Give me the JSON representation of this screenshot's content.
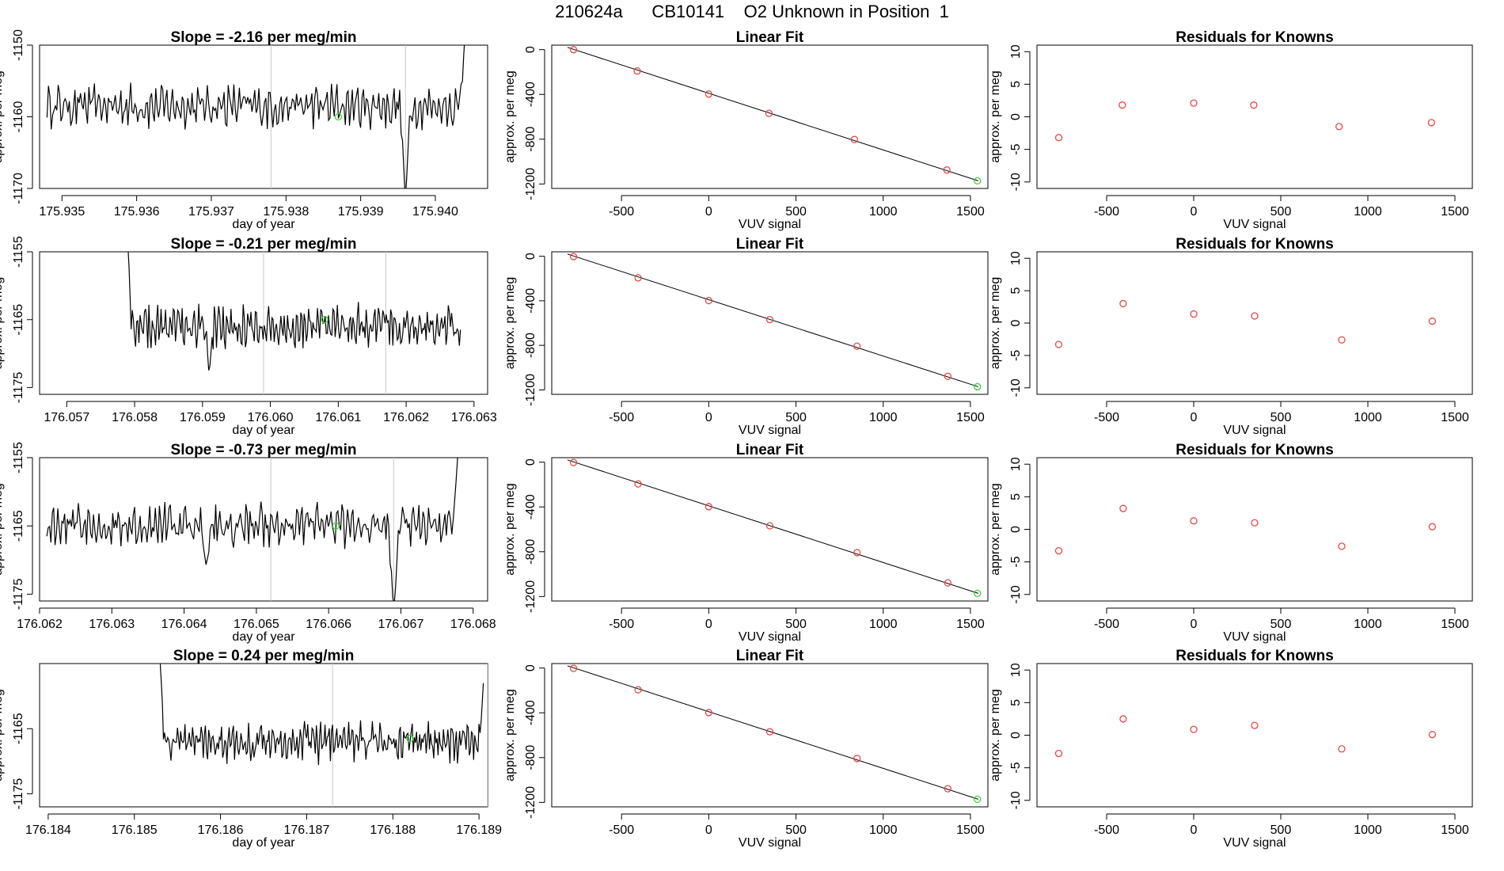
{
  "page": {
    "title": "210624a      CB10141    O2 Unknown in Position  1"
  },
  "colors": {
    "series": "#000000",
    "marker_known": "#dd4b4b",
    "marker_unknown": "#3ecf3e",
    "vline": "#c8c8c8",
    "axis": "#000000"
  },
  "chart_data": [
    {
      "type": "line",
      "row": 0,
      "panel": "time-series",
      "title": "Slope =  -2.16  per meg/min",
      "xlabel": "day of year",
      "ylabel": "approx. per meg",
      "xlim": [
        175.9347,
        175.9407
      ],
      "ylim": [
        -1170,
        -1150
      ],
      "x_ticks": [
        "175.935",
        "175.936",
        "175.937",
        "175.938",
        "175.939",
        "175.940"
      ],
      "y_ticks": [
        "-1150",
        "-1160",
        "-1170"
      ],
      "vlines": [
        175.9378,
        175.9396
      ],
      "series": {
        "x_start": 175.9348,
        "x_end": 175.9404,
        "base": -1158.5,
        "amp": 2.5,
        "events": [
          {
            "x": 175.9396,
            "y": -1172
          },
          {
            "x": 175.9404,
            "y": -1148
          }
        ]
      },
      "unknown_marker": {
        "x": 175.9387,
        "y": -1160
      }
    },
    {
      "type": "scatter",
      "row": 0,
      "panel": "linear-fit",
      "title": "Linear Fit",
      "xlabel": "VUV signal",
      "ylabel": "approx. per meg",
      "xlim": [
        -900,
        1600
      ],
      "ylim": [
        -1240,
        40
      ],
      "x_ticks": [
        "-500",
        "0",
        "500",
        "1000",
        "1500"
      ],
      "y_ticks": [
        "0",
        "-400",
        "-800",
        "-1200"
      ],
      "fit_line": {
        "x": [
          -810,
          1545
        ],
        "y": [
          20,
          -1172
        ]
      },
      "knowns": {
        "x": [
          -775,
          -410,
          0,
          345,
          835,
          1365
        ],
        "y": [
          -1,
          -191,
          -397,
          -569,
          -803,
          -1075
        ]
      },
      "unknown": {
        "x": 1540,
        "y": -1172
      }
    },
    {
      "type": "scatter",
      "row": 0,
      "panel": "residuals",
      "title": "Residuals for Knowns",
      "xlabel": "VUV signal",
      "ylabel": "approx. per meg",
      "xlim": [
        -900,
        1600
      ],
      "ylim": [
        -11,
        11
      ],
      "x_ticks": [
        "-500",
        "0",
        "500",
        "1000",
        "1500"
      ],
      "y_ticks": [
        "10",
        "5",
        "0",
        "-5",
        "-10"
      ],
      "x": [
        -775,
        -410,
        0,
        345,
        835,
        1365
      ],
      "y": [
        -3.2,
        1.8,
        2.1,
        1.8,
        -1.5,
        -0.9
      ]
    },
    {
      "type": "line",
      "row": 1,
      "panel": "time-series",
      "title": "Slope =  -0.21  per meg/min",
      "xlabel": "day of year",
      "ylabel": "approx. per meg",
      "xlim": [
        176.0566,
        176.0632
      ],
      "ylim": [
        -1176,
        -1155
      ],
      "x_ticks": [
        "176.057",
        "176.058",
        "176.059",
        "176.060",
        "176.061",
        "176.062",
        "176.063"
      ],
      "y_ticks": [
        "-1155",
        "-1165",
        "-1175"
      ],
      "vlines": [
        176.0599,
        176.0617
      ],
      "series": {
        "x_start": 176.0579,
        "x_end": 176.0628,
        "base": -1166,
        "amp": 2.6,
        "events": [
          {
            "x": 176.0579,
            "y": -1154
          },
          {
            "x": 176.0591,
            "y": -1173
          }
        ]
      },
      "unknown_marker": {
        "x": 176.0608,
        "y": -1165
      }
    },
    {
      "type": "scatter",
      "row": 1,
      "panel": "linear-fit",
      "title": "Linear Fit",
      "xlabel": "VUV signal",
      "ylabel": "approx. per meg",
      "xlim": [
        -900,
        1600
      ],
      "ylim": [
        -1240,
        40
      ],
      "x_ticks": [
        "-500",
        "0",
        "500",
        "1000",
        "1500"
      ],
      "y_ticks": [
        "0",
        "-400",
        "-800",
        "-1200"
      ],
      "fit_line": {
        "x": [
          -810,
          1545
        ],
        "y": [
          20,
          -1172
        ]
      },
      "knowns": {
        "x": [
          -775,
          -405,
          0,
          350,
          850,
          1370
        ],
        "y": [
          -3,
          -194,
          -398,
          -569,
          -808,
          -1078
        ]
      },
      "unknown": {
        "x": 1540,
        "y": -1172
      }
    },
    {
      "type": "scatter",
      "row": 1,
      "panel": "residuals",
      "title": "Residuals for Knowns",
      "xlabel": "VUV signal",
      "ylabel": "approx. per meg",
      "xlim": [
        -900,
        1600
      ],
      "ylim": [
        -11,
        11
      ],
      "x_ticks": [
        "-500",
        "0",
        "500",
        "1000",
        "1500"
      ],
      "y_ticks": [
        "10",
        "5",
        "0",
        "-5",
        "-10"
      ],
      "x": [
        -775,
        -405,
        0,
        350,
        850,
        1370
      ],
      "y": [
        -3.3,
        3.0,
        1.4,
        1.1,
        -2.6,
        0.3
      ]
    },
    {
      "type": "line",
      "row": 2,
      "panel": "time-series",
      "title": "Slope =  -0.73  per meg/min",
      "xlabel": "day of year",
      "ylabel": "approx. per meg",
      "xlim": [
        176.062,
        176.0682
      ],
      "ylim": [
        -1176,
        -1155
      ],
      "x_ticks": [
        "176.062",
        "176.063",
        "176.064",
        "176.065",
        "176.066",
        "176.067",
        "176.068"
      ],
      "y_ticks": [
        "-1155",
        "-1165",
        "-1175"
      ],
      "vlines": [
        176.0652,
        176.0669
      ],
      "series": {
        "x_start": 176.0621,
        "x_end": 176.0678,
        "base": -1165,
        "amp": 2.6,
        "events": [
          {
            "x": 176.0643,
            "y": -1171
          },
          {
            "x": 176.0669,
            "y": -1178
          },
          {
            "x": 176.0678,
            "y": -1152
          }
        ]
      },
      "unknown_marker": {
        "x": 176.0661,
        "y": -1165
      }
    },
    {
      "type": "scatter",
      "row": 2,
      "panel": "linear-fit",
      "title": "Linear Fit",
      "xlabel": "VUV signal",
      "ylabel": "approx. per meg",
      "xlim": [
        -900,
        1600
      ],
      "ylim": [
        -1240,
        40
      ],
      "x_ticks": [
        "-500",
        "0",
        "500",
        "1000",
        "1500"
      ],
      "y_ticks": [
        "0",
        "-400",
        "-800",
        "-1200"
      ],
      "fit_line": {
        "x": [
          -810,
          1545
        ],
        "y": [
          20,
          -1172
        ]
      },
      "knowns": {
        "x": [
          -775,
          -405,
          0,
          350,
          850,
          1370
        ],
        "y": [
          -3,
          -194,
          -398,
          -569,
          -808,
          -1078
        ]
      },
      "unknown": {
        "x": 1540,
        "y": -1172
      }
    },
    {
      "type": "scatter",
      "row": 2,
      "panel": "residuals",
      "title": "Residuals for Knowns",
      "xlabel": "VUV signal",
      "ylabel": "approx. per meg",
      "xlim": [
        -900,
        1600
      ],
      "ylim": [
        -11,
        11
      ],
      "x_ticks": [
        "-500",
        "0",
        "500",
        "1000",
        "1500"
      ],
      "y_ticks": [
        "10",
        "5",
        "0",
        "-5",
        "-10"
      ],
      "x": [
        -775,
        -405,
        0,
        350,
        850,
        1370
      ],
      "y": [
        -3.3,
        3.2,
        1.3,
        1.0,
        -2.6,
        0.4
      ]
    },
    {
      "type": "line",
      "row": 3,
      "panel": "time-series",
      "title": "Slope =  0.24  per meg/min",
      "xlabel": "day of year",
      "ylabel": "approx. per meg",
      "xlim": [
        176.1839,
        176.1891
      ],
      "ylim": [
        -1177,
        -1155
      ],
      "x_ticks": [
        "176.184",
        "176.185",
        "176.186",
        "176.187",
        "176.188",
        "176.189"
      ],
      "y_ticks": [
        "-1165",
        "-1175"
      ],
      "vlines": [
        176.1873,
        176.1891
      ],
      "series": {
        "x_start": 176.1853,
        "x_end": 176.18905,
        "base": -1167,
        "amp": 2.6,
        "events": [
          {
            "x": 176.1853,
            "y": -1155
          },
          {
            "x": 176.18905,
            "y": -1158
          }
        ]
      },
      "unknown_marker": {
        "x": 176.1882,
        "y": -1166.5
      }
    },
    {
      "type": "scatter",
      "row": 3,
      "panel": "linear-fit",
      "title": "Linear Fit",
      "xlabel": "VUV signal",
      "ylabel": "approx. per meg",
      "xlim": [
        -900,
        1600
      ],
      "ylim": [
        -1240,
        40
      ],
      "x_ticks": [
        "-500",
        "0",
        "500",
        "1000",
        "1500"
      ],
      "y_ticks": [
        "0",
        "-400",
        "-800",
        "-1200"
      ],
      "fit_line": {
        "x": [
          -810,
          1545
        ],
        "y": [
          20,
          -1172
        ]
      },
      "knowns": {
        "x": [
          -775,
          -405,
          0,
          350,
          850,
          1370
        ],
        "y": [
          -3,
          -194,
          -398,
          -569,
          -808,
          -1078
        ]
      },
      "unknown": {
        "x": 1540,
        "y": -1172
      }
    },
    {
      "type": "scatter",
      "row": 3,
      "panel": "residuals",
      "title": "Residuals for Knowns",
      "xlabel": "VUV signal",
      "ylabel": "approx. per meg",
      "xlim": [
        -900,
        1600
      ],
      "ylim": [
        -11,
        11
      ],
      "x_ticks": [
        "-500",
        "0",
        "500",
        "1000",
        "1500"
      ],
      "y_ticks": [
        "10",
        "5",
        "0",
        "-5",
        "-10"
      ],
      "x": [
        -775,
        -405,
        0,
        350,
        850,
        1370
      ],
      "y": [
        -2.8,
        2.5,
        0.9,
        1.5,
        -2.1,
        0.1
      ]
    }
  ]
}
